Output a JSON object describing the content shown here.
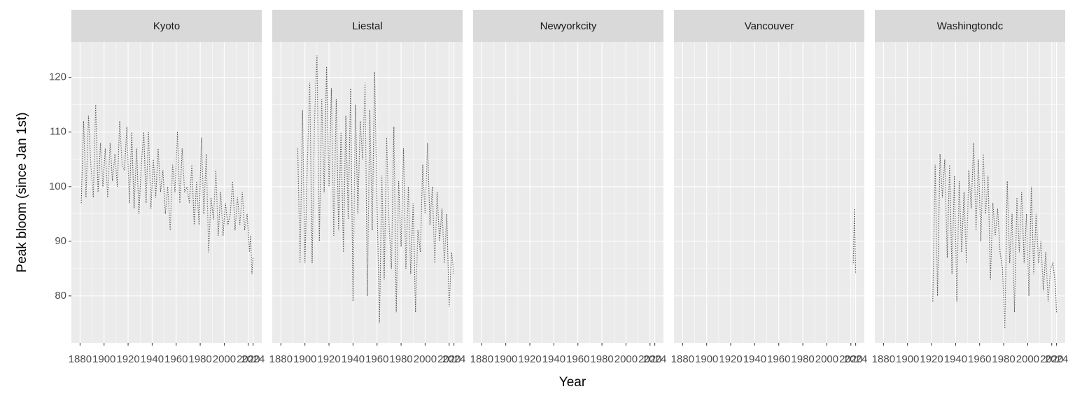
{
  "chart_data": {
    "type": "line",
    "x_label": "Year",
    "y_label": "Peak bloom (since Jan 1st)",
    "line_color": "#4d4d4d",
    "line_style": "dotted",
    "grid": true,
    "xlim": [
      1872.8,
      2031.2
    ],
    "xticks": [
      1880,
      1900,
      1920,
      1940,
      1960,
      1980,
      2000,
      2020,
      2024
    ],
    "ylim": [
      71.4,
      126.5
    ],
    "yticks": [
      80,
      90,
      100,
      110,
      120
    ],
    "facets": [
      {
        "title": "Kyoto",
        "x": [
          1881,
          1883,
          1885,
          1887,
          1889,
          1891,
          1893,
          1895,
          1897,
          1899,
          1901,
          1903,
          1905,
          1907,
          1909,
          1911,
          1913,
          1915,
          1917,
          1919,
          1921,
          1923,
          1925,
          1927,
          1929,
          1931,
          1933,
          1935,
          1937,
          1939,
          1941,
          1943,
          1945,
          1947,
          1949,
          1951,
          1953,
          1955,
          1957,
          1959,
          1961,
          1963,
          1965,
          1967,
          1969,
          1971,
          1973,
          1975,
          1977,
          1979,
          1981,
          1983,
          1985,
          1987,
          1989,
          1991,
          1993,
          1995,
          1997,
          1999,
          2001,
          2003,
          2005,
          2007,
          2009,
          2011,
          2013,
          2015,
          2017,
          2019,
          2021,
          2022,
          2023,
          2024
        ],
        "values": [
          97,
          112,
          98,
          113,
          104,
          98,
          115,
          99,
          108,
          100,
          107,
          98,
          108,
          101,
          106,
          100,
          112,
          104,
          103,
          111,
          97,
          110,
          96,
          107,
          95,
          104,
          110,
          97,
          110,
          96,
          105,
          98,
          107,
          99,
          103,
          95,
          100,
          92,
          104,
          99,
          110,
          97,
          107,
          99,
          100,
          97,
          104,
          93,
          101,
          93,
          109,
          95,
          106,
          88,
          98,
          94,
          103,
          91,
          99,
          91,
          97,
          93,
          95,
          101,
          92,
          98,
          93,
          99,
          92,
          95,
          88,
          91,
          84,
          87
        ]
      },
      {
        "title": "Liestal",
        "x": [
          1894,
          1896,
          1898,
          1900,
          1902,
          1904,
          1906,
          1908,
          1910,
          1912,
          1914,
          1916,
          1918,
          1920,
          1922,
          1924,
          1926,
          1928,
          1930,
          1932,
          1934,
          1936,
          1938,
          1940,
          1942,
          1944,
          1946,
          1948,
          1950,
          1952,
          1954,
          1956,
          1958,
          1960,
          1962,
          1964,
          1966,
          1968,
          1970,
          1972,
          1974,
          1976,
          1978,
          1980,
          1982,
          1984,
          1986,
          1988,
          1990,
          1992,
          1994,
          1996,
          1998,
          2000,
          2002,
          2004,
          2006,
          2008,
          2010,
          2012,
          2014,
          2016,
          2018,
          2020,
          2022,
          2024
        ],
        "values": [
          107,
          86,
          114,
          86,
          104,
          119,
          86,
          112,
          124,
          90,
          116,
          99,
          122,
          100,
          118,
          91,
          116,
          92,
          110,
          88,
          113,
          94,
          118,
          79,
          115,
          95,
          112,
          105,
          119,
          80,
          114,
          92,
          121,
          97,
          75,
          102,
          83,
          109,
          93,
          85,
          111,
          77,
          101,
          89,
          107,
          85,
          100,
          84,
          97,
          77,
          92,
          88,
          104,
          95,
          108,
          93,
          100,
          86,
          99,
          90,
          96,
          86,
          95,
          78,
          88,
          84
        ]
      },
      {
        "title": "Newyorkcity",
        "x": [],
        "values": []
      },
      {
        "title": "Vancouver",
        "x": [
          2022,
          2023,
          2024
        ],
        "values": [
          86,
          96,
          84
        ]
      },
      {
        "title": "Washingtondc",
        "x": [
          1921,
          1923,
          1925,
          1927,
          1929,
          1931,
          1933,
          1935,
          1937,
          1939,
          1941,
          1943,
          1945,
          1947,
          1949,
          1951,
          1953,
          1955,
          1957,
          1959,
          1961,
          1963,
          1965,
          1967,
          1969,
          1971,
          1973,
          1975,
          1977,
          1979,
          1981,
          1983,
          1985,
          1987,
          1989,
          1991,
          1993,
          1995,
          1997,
          1999,
          2001,
          2003,
          2005,
          2007,
          2009,
          2011,
          2013,
          2015,
          2017,
          2019,
          2021,
          2023,
          2024
        ],
        "values": [
          79,
          104,
          80,
          106,
          98,
          105,
          87,
          104,
          84,
          102,
          79,
          101,
          88,
          99,
          86,
          103,
          96,
          108,
          92,
          105,
          90,
          106,
          95,
          102,
          83,
          97,
          91,
          96,
          88,
          85,
          74,
          101,
          86,
          95,
          77,
          98,
          88,
          99,
          86,
          95,
          80,
          100,
          84,
          95,
          86,
          90,
          81,
          88,
          79,
          85,
          86,
          82,
          77
        ]
      }
    ]
  }
}
